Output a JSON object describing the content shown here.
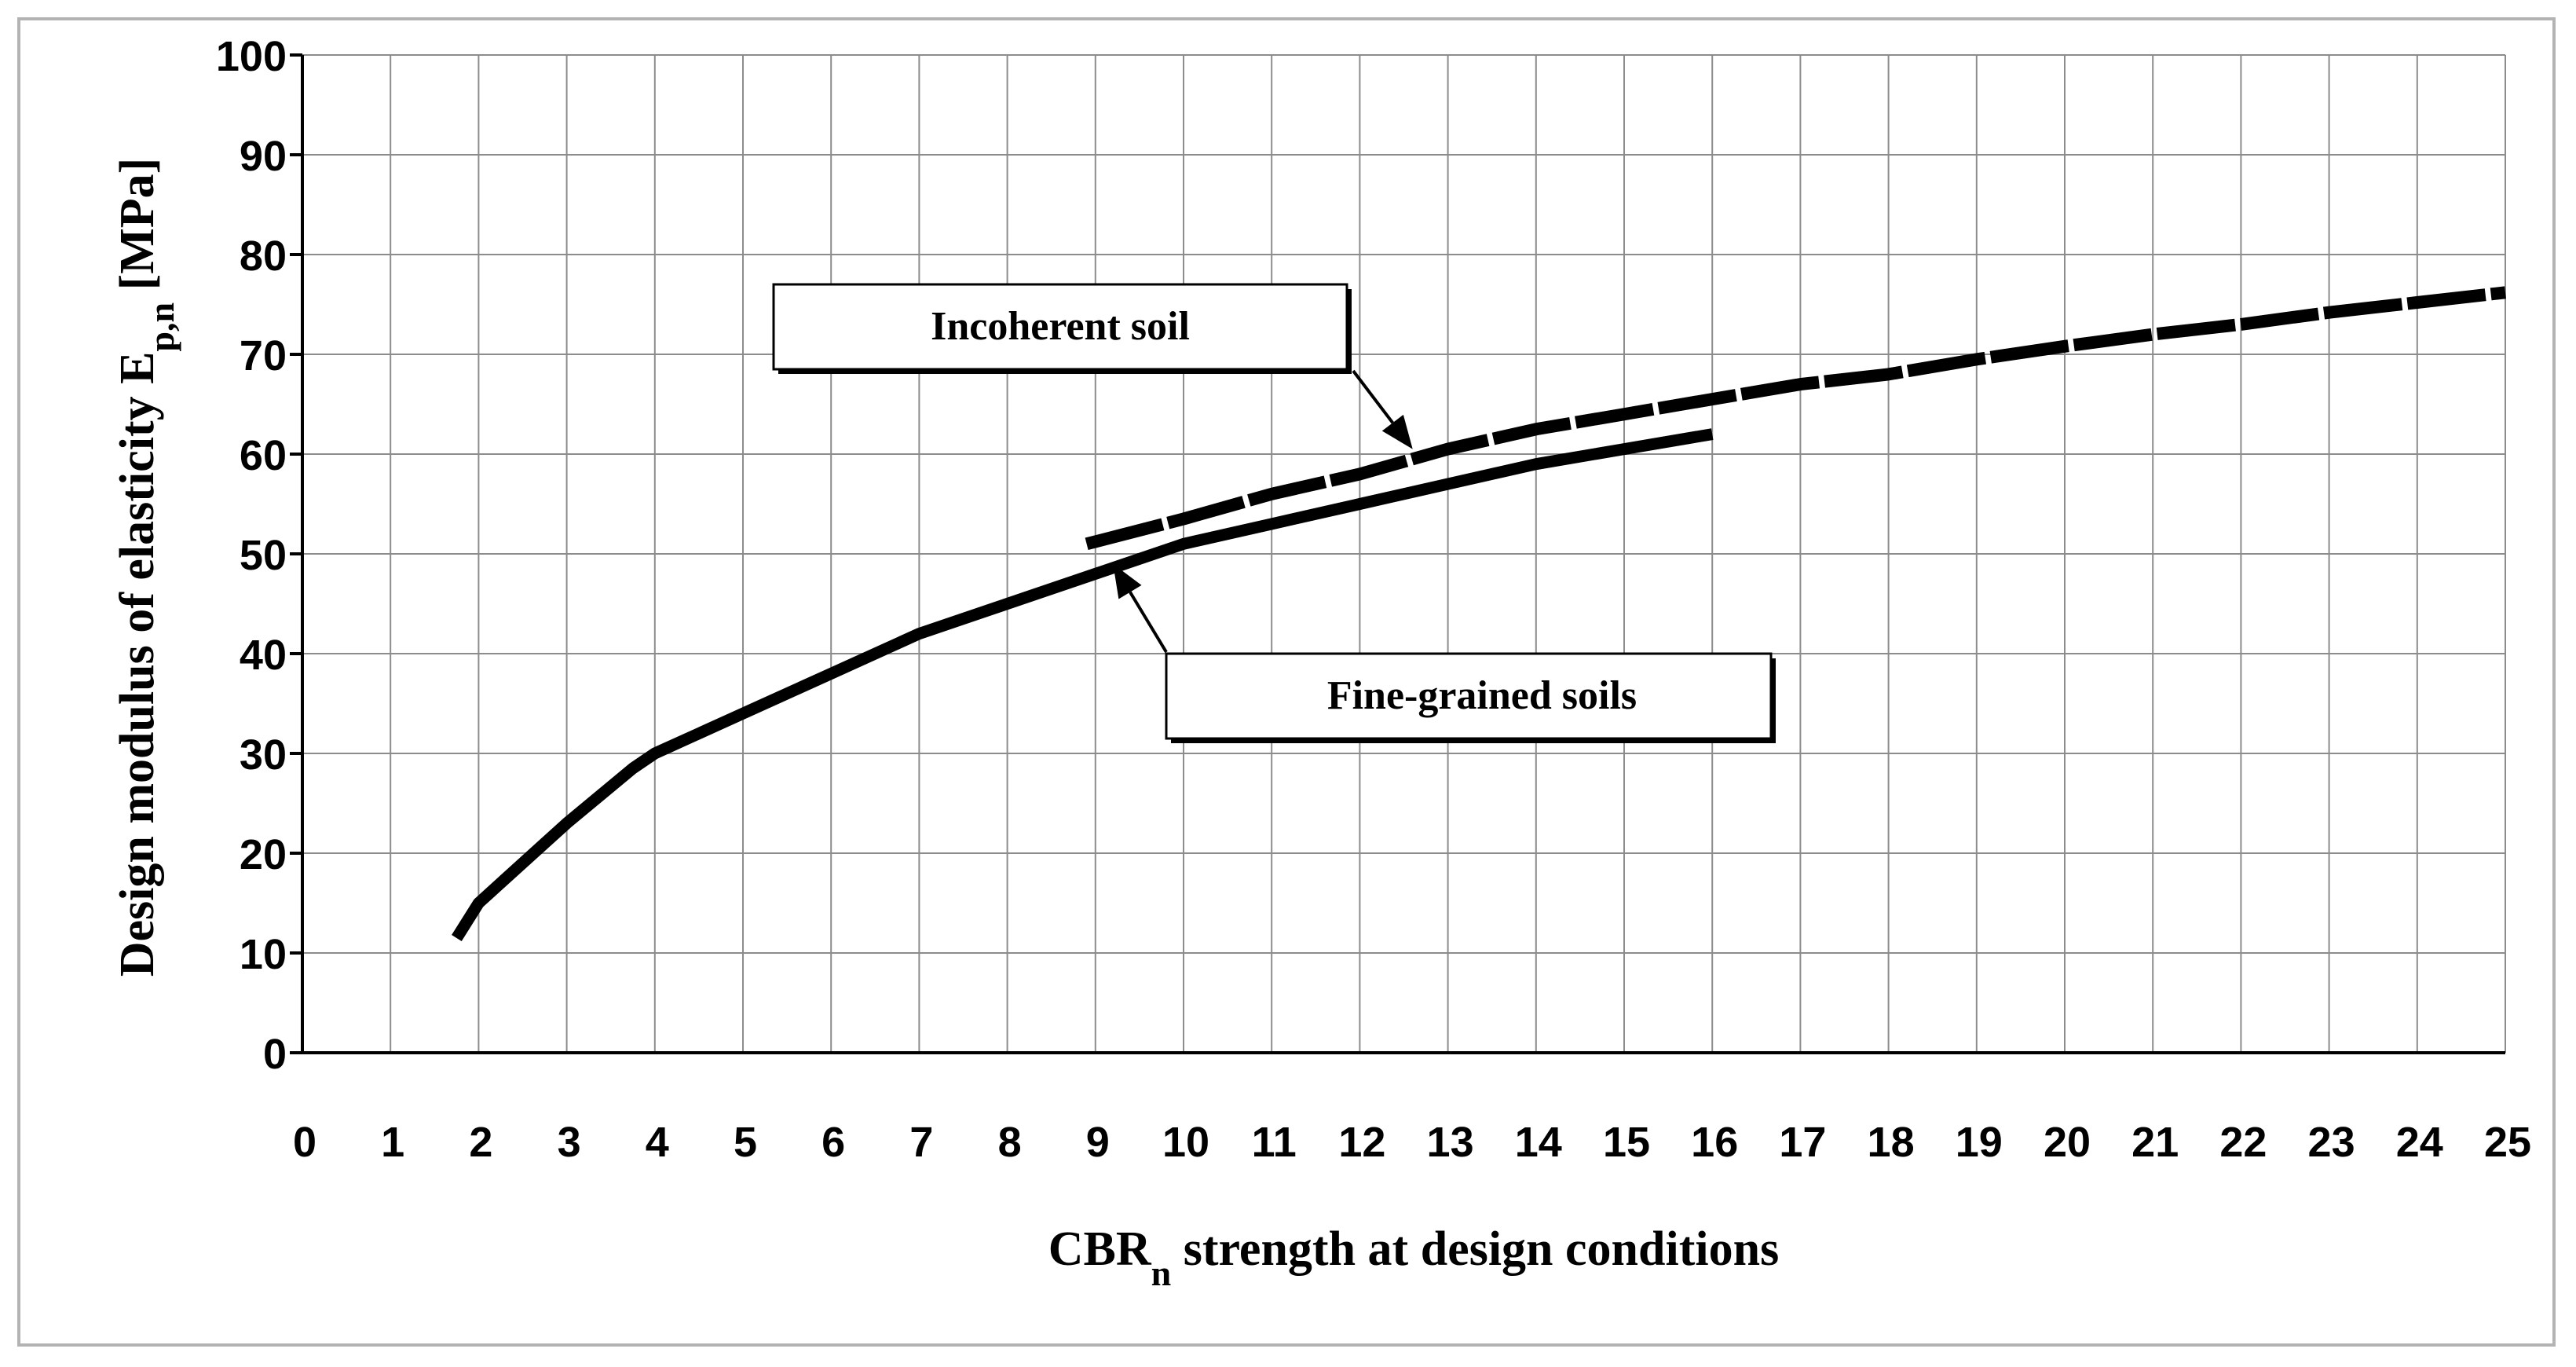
{
  "chart_data": {
    "type": "line",
    "title": "",
    "xlabel": {
      "main": "CBR",
      "sub": "n",
      "rest": " strength at design conditions"
    },
    "ylabel": {
      "main": "Design modulus of elasticity E",
      "sub": "p,n",
      "rest": " [MPa]"
    },
    "xlim": [
      0,
      25
    ],
    "ylim": [
      0,
      100
    ],
    "xticks": [
      0,
      1,
      2,
      3,
      4,
      5,
      6,
      7,
      8,
      9,
      10,
      11,
      12,
      13,
      14,
      15,
      16,
      17,
      18,
      19,
      20,
      21,
      22,
      23,
      24,
      25
    ],
    "yticks": [
      0,
      10,
      20,
      30,
      40,
      50,
      60,
      70,
      80,
      90,
      100
    ],
    "grid": true,
    "series": [
      {
        "name": "Fine-grained soils",
        "style": "solid",
        "x": [
          1.75,
          2,
          2.75,
          3,
          3.75,
          4,
          5,
          6,
          7,
          8,
          9,
          10,
          11,
          12,
          13,
          14,
          15,
          16
        ],
        "y": [
          11.5,
          15,
          21,
          23,
          28.5,
          30,
          34,
          38,
          42,
          45,
          48,
          51,
          53,
          55,
          57,
          59,
          60.5,
          62
        ]
      },
      {
        "name": "Incoherent soil",
        "style": "dashed",
        "x": [
          8.9,
          10,
          11,
          12,
          13,
          14,
          15,
          16,
          17,
          18,
          19,
          20,
          21,
          22,
          23,
          24,
          25
        ],
        "y": [
          51,
          53.5,
          56,
          58,
          60.5,
          62.5,
          64,
          65.5,
          67,
          68,
          69.5,
          70.8,
          72,
          73,
          74.2,
          75.2,
          76.2
        ]
      }
    ],
    "annotations": [
      {
        "text": "Incoherent soil",
        "points_to": "Incoherent soil",
        "target": [
          12.6,
          60.5
        ]
      },
      {
        "text": "Fine-grained soils",
        "points_to": "Fine-grained soils",
        "target": [
          9.2,
          49
        ]
      }
    ]
  }
}
